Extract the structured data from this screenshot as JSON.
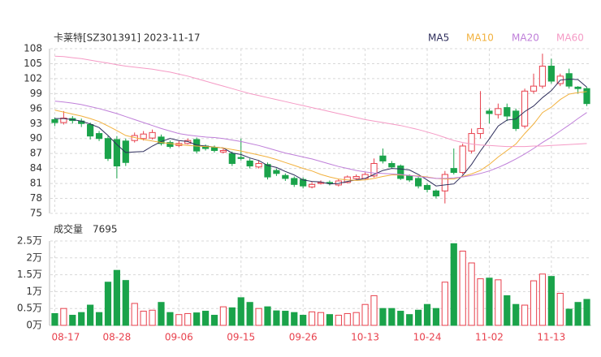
{
  "chart_data": [
    {
      "type": "candlestick",
      "title": "卡莱特[SZ301391] 2023-11-17",
      "categories": [
        "08-17",
        null,
        null,
        null,
        null,
        null,
        null,
        "08-28",
        null,
        null,
        null,
        null,
        null,
        null,
        "09-06",
        null,
        null,
        null,
        null,
        null,
        null,
        "09-15",
        null,
        null,
        null,
        null,
        null,
        null,
        "09-26",
        null,
        null,
        null,
        null,
        null,
        null,
        "10-13",
        null,
        null,
        null,
        null,
        null,
        null,
        "10-24",
        null,
        null,
        null,
        null,
        null,
        null,
        "11-02",
        null,
        null,
        null,
        null,
        null,
        null,
        "11-13",
        null,
        null,
        null,
        null
      ],
      "open": [
        93.8,
        93.2,
        94.0,
        93.5,
        92.8,
        91.0,
        90.0,
        89.8,
        89.5,
        89.6,
        90.0,
        90.1,
        90.3,
        89.2,
        88.6,
        89.0,
        89.8,
        88.5,
        88.2,
        87.3,
        87.0,
        86.2,
        85.5,
        84.3,
        84.8,
        83.6,
        82.6,
        82.0,
        81.8,
        80.3,
        81.0,
        81.2,
        80.7,
        81.2,
        82.0,
        82.0,
        82.5,
        86.5,
        85.0,
        84.5,
        82.5,
        82.0,
        80.6,
        79.5,
        79.5,
        84.0,
        83.2,
        87.5,
        91.0,
        95.5,
        94.8,
        96.2,
        95.5,
        92.5,
        99.5,
        100.5,
        104.5,
        101.0,
        103.0,
        100.3,
        100.0
      ],
      "high": [
        94.2,
        95.5,
        94.5,
        94.0,
        93.2,
        91.5,
        90.5,
        90.5,
        90.0,
        91.2,
        91.5,
        91.8,
        90.8,
        89.6,
        89.5,
        90.0,
        90.2,
        88.8,
        88.6,
        88.2,
        87.4,
        90.0,
        86.0,
        85.6,
        85.2,
        84.0,
        83.0,
        82.4,
        82.2,
        81.3,
        81.6,
        81.6,
        81.9,
        82.6,
        82.8,
        83.2,
        86.0,
        88.0,
        85.5,
        84.8,
        82.8,
        82.3,
        81.0,
        79.8,
        83.5,
        88.0,
        89.0,
        92.0,
        99.5,
        96.0,
        97.0,
        97.0,
        96.0,
        100.0,
        103.0,
        107.0,
        106.0,
        103.0,
        104.0,
        100.5,
        100.3
      ],
      "low": [
        92.5,
        92.8,
        93.0,
        92.3,
        89.8,
        89.5,
        85.5,
        82.0,
        84.5,
        89.2,
        89.6,
        89.8,
        88.6,
        88.0,
        88.3,
        88.8,
        87.0,
        87.6,
        87.2,
        87.0,
        84.5,
        85.6,
        84.0,
        84.0,
        81.8,
        82.5,
        81.5,
        80.3,
        80.0,
        80.0,
        80.8,
        80.6,
        80.4,
        81.0,
        81.8,
        81.8,
        82.2,
        85.0,
        84.0,
        81.7,
        81.3,
        80.0,
        79.2,
        78.0,
        77.0,
        82.8,
        82.8,
        87.0,
        90.0,
        93.0,
        94.0,
        93.5,
        91.5,
        92.0,
        99.0,
        100.0,
        101.0,
        100.5,
        100.0,
        99.0,
        96.5
      ],
      "close": [
        93.2,
        94.1,
        93.6,
        93.0,
        90.5,
        90.0,
        86.0,
        84.5,
        85.2,
        90.6,
        90.9,
        91.2,
        89.0,
        88.4,
        89.0,
        89.6,
        87.5,
        88.0,
        87.6,
        87.6,
        85.0,
        86.0,
        84.5,
        85.0,
        82.3,
        83.0,
        82.0,
        80.8,
        80.5,
        80.8,
        81.2,
        81.0,
        81.5,
        82.3,
        82.4,
        82.8,
        85.0,
        85.5,
        84.3,
        82.0,
        81.7,
        80.5,
        79.8,
        78.5,
        82.8,
        83.2,
        88.5,
        91.0,
        92.0,
        95.0,
        96.0,
        94.5,
        92.0,
        99.5,
        100.5,
        104.5,
        101.5,
        102.5,
        100.5,
        100.0,
        97.0
      ],
      "up_color": "#e8414d",
      "down_color": "#1aa34a",
      "series": [
        {
          "name": "MA5",
          "color": "#2e2e5c",
          "values": [
            94.0,
            94.0,
            93.8,
            93.5,
            92.9,
            92.2,
            90.6,
            88.8,
            87.2,
            87.3,
            87.4,
            88.5,
            89.4,
            90.0,
            89.6,
            89.4,
            88.7,
            88.5,
            88.3,
            88.1,
            87.1,
            86.8,
            86.1,
            85.6,
            84.6,
            84.2,
            83.4,
            82.7,
            81.7,
            81.4,
            81.3,
            80.9,
            81.0,
            81.4,
            81.7,
            82.0,
            82.8,
            83.6,
            84.0,
            83.9,
            83.7,
            82.8,
            81.7,
            80.5,
            80.7,
            80.9,
            82.6,
            84.8,
            87.5,
            89.9,
            92.5,
            93.7,
            93.9,
            95.4,
            96.5,
            98.2,
            99.6,
            101.7,
            101.9,
            101.8,
            100.3
          ]
        },
        {
          "name": "MA10",
          "color": "#f2b13e",
          "values": [
            95.7,
            95.3,
            94.9,
            94.5,
            94.0,
            93.4,
            92.5,
            91.6,
            90.6,
            90.2,
            89.8,
            89.5,
            89.2,
            89.0,
            88.8,
            88.6,
            88.5,
            88.4,
            88.3,
            88.1,
            87.8,
            87.5,
            87.1,
            86.7,
            86.3,
            85.8,
            85.2,
            84.6,
            84.0,
            83.5,
            82.8,
            82.3,
            81.9,
            81.7,
            81.6,
            81.7,
            82.0,
            82.4,
            82.7,
            82.7,
            82.6,
            82.5,
            82.3,
            82.0,
            81.9,
            81.9,
            82.4,
            82.9,
            83.6,
            84.8,
            86.3,
            87.6,
            88.9,
            91.0,
            92.9,
            95.2,
            96.3,
            97.8,
            98.9,
            99.2,
            99.4
          ]
        },
        {
          "name": "MA20",
          "color": "#bf7fd9",
          "values": [
            97.5,
            97.3,
            97.1,
            96.8,
            96.4,
            96.0,
            95.5,
            95.0,
            94.4,
            93.8,
            93.2,
            92.6,
            92.0,
            91.5,
            91.0,
            90.7,
            90.5,
            90.3,
            90.2,
            90.0,
            89.7,
            89.4,
            89.0,
            88.6,
            88.1,
            87.6,
            87.1,
            86.7,
            86.3,
            85.9,
            85.4,
            84.9,
            84.4,
            84.0,
            83.6,
            83.3,
            83.1,
            83.0,
            82.9,
            82.8,
            82.6,
            82.4,
            82.2,
            82.0,
            82.0,
            82.1,
            82.3,
            82.6,
            83.0,
            83.5,
            84.2,
            85.0,
            85.9,
            86.9,
            88.0,
            89.2,
            90.3,
            91.5,
            92.7,
            94.0,
            95.2
          ]
        },
        {
          "name": "MA60",
          "color": "#f59ac5",
          "values": [
            106.5,
            106.4,
            106.2,
            106.0,
            105.7,
            105.4,
            105.1,
            104.8,
            104.5,
            104.3,
            104.1,
            103.9,
            103.6,
            103.3,
            102.9,
            102.5,
            102.0,
            101.5,
            101.0,
            100.5,
            100.0,
            99.5,
            99.0,
            98.6,
            98.2,
            97.8,
            97.4,
            97.0,
            96.6,
            96.2,
            95.8,
            95.4,
            95.0,
            94.6,
            94.2,
            93.8,
            93.5,
            93.2,
            92.9,
            92.6,
            92.2,
            91.8,
            91.3,
            90.8,
            90.2,
            89.6,
            89.2,
            88.9,
            88.7,
            88.6,
            88.5,
            88.4,
            88.4,
            88.4,
            88.5,
            88.5,
            88.6,
            88.7,
            88.8,
            88.9,
            89.0
          ]
        }
      ],
      "ylim": [
        75,
        108
      ],
      "yticks": [
        75,
        78,
        81,
        84,
        87,
        90,
        93,
        96,
        99,
        102,
        105,
        108
      ],
      "grid": true
    },
    {
      "type": "bar",
      "title": "成交量",
      "last_value": 7695,
      "values": [
        0.35,
        0.5,
        0.3,
        0.38,
        0.6,
        0.38,
        1.28,
        1.63,
        1.33,
        0.65,
        0.42,
        0.45,
        0.68,
        0.38,
        0.32,
        0.35,
        0.37,
        0.42,
        0.3,
        0.55,
        0.52,
        0.82,
        0.68,
        0.5,
        0.55,
        0.43,
        0.42,
        0.38,
        0.3,
        0.4,
        0.38,
        0.32,
        0.3,
        0.35,
        0.38,
        0.62,
        0.88,
        0.5,
        0.5,
        0.42,
        0.32,
        0.45,
        0.62,
        0.5,
        1.28,
        2.42,
        2.2,
        1.85,
        1.38,
        1.4,
        1.35,
        0.88,
        0.62,
        0.6,
        1.32,
        1.52,
        1.45,
        0.95,
        0.48,
        0.68,
        0.7695
      ],
      "ylim": [
        0,
        2.5
      ],
      "yticks": [
        {
          "value": 0,
          "label": "0万"
        },
        {
          "value": 0.5,
          "label": "0.5万"
        },
        {
          "value": 1,
          "label": "1万"
        },
        {
          "value": 1.5,
          "label": "1.5万"
        },
        {
          "value": 2,
          "label": "2万"
        },
        {
          "value": 2.5,
          "label": "2.5万"
        }
      ],
      "grid": true
    }
  ]
}
